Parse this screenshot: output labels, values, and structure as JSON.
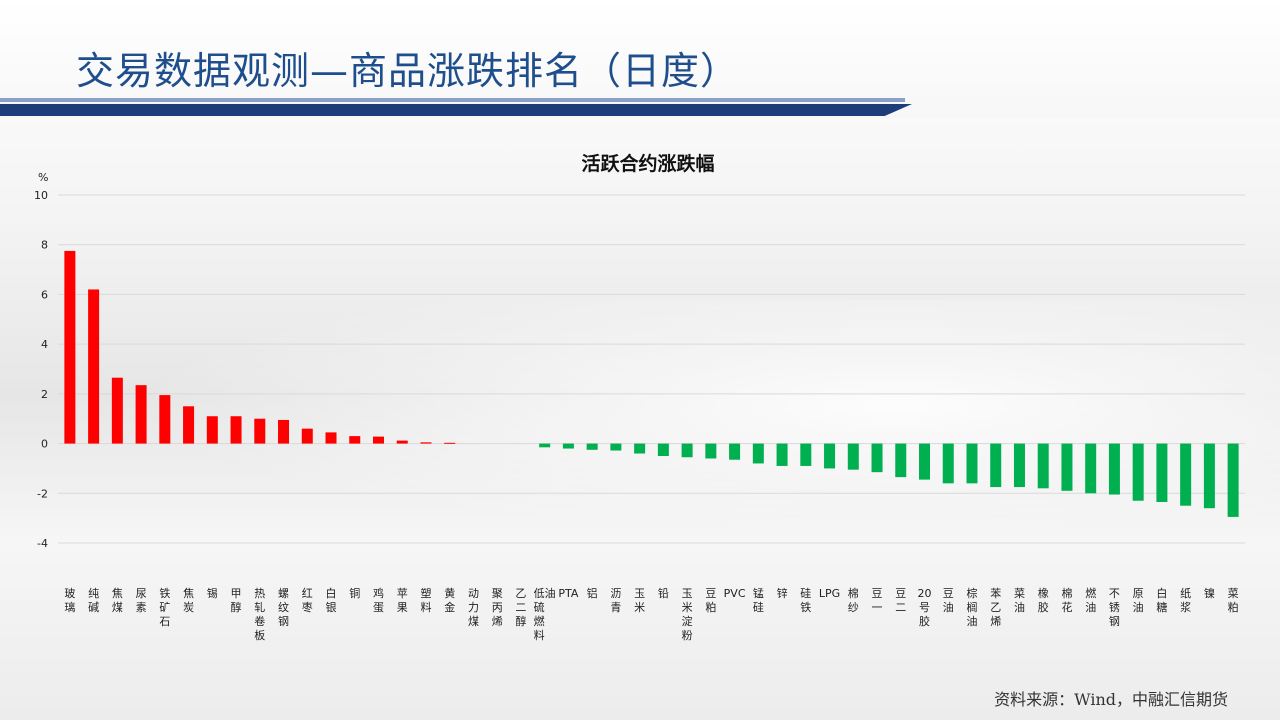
{
  "header": {
    "title": "交易数据观测—商品涨跌排名（日度）"
  },
  "footer": {
    "source": "资料来源：Wind，中融汇信期货"
  },
  "colors": {
    "up": "#ff0000",
    "down": "#00b050",
    "title": "#1f4e8c",
    "rule": "#1c3d7a",
    "grid": "#d9d9d9"
  },
  "chart_data": {
    "type": "bar",
    "title": "活跃合约涨跌幅",
    "ylabel": "%",
    "xlabel": "",
    "ylim": [
      -4,
      10
    ],
    "yticks": [
      10,
      8,
      6,
      4,
      2,
      0,
      -2,
      -4
    ],
    "grid": true,
    "categories": [
      "玻璃",
      "纯碱",
      "焦煤",
      "尿素",
      "铁矿石",
      "焦炭",
      "锡",
      "甲醇",
      "热轧卷板",
      "螺纹钢",
      "红枣",
      "白银",
      "铜",
      "鸡蛋",
      "苹果",
      "塑料",
      "黄金",
      "动力煤",
      "聚丙烯",
      "乙二醇",
      "低硫燃料油",
      "PTA",
      "铝",
      "沥青",
      "玉米",
      "铅",
      "玉米淀粉",
      "豆粕",
      "PVC",
      "锰硅",
      "锌",
      "硅铁",
      "LPG",
      "棉纱",
      "豆一",
      "豆二",
      "20号胶",
      "豆油",
      "棕榈油",
      "苯乙烯",
      "菜油",
      "橡胶",
      "棉花",
      "燃油",
      "不锈钢",
      "原油",
      "白糖",
      "纸浆",
      "镍",
      "菜粕"
    ],
    "values": [
      7.75,
      6.2,
      2.65,
      2.35,
      1.95,
      1.5,
      1.1,
      1.1,
      1.0,
      0.95,
      0.6,
      0.45,
      0.3,
      0.28,
      0.12,
      0.05,
      0.03,
      0.0,
      0.0,
      0.0,
      -0.15,
      -0.2,
      -0.25,
      -0.28,
      -0.4,
      -0.5,
      -0.55,
      -0.6,
      -0.65,
      -0.8,
      -0.9,
      -0.9,
      -1.0,
      -1.05,
      -1.15,
      -1.35,
      -1.45,
      -1.6,
      -1.6,
      -1.75,
      -1.75,
      -1.8,
      -1.9,
      -2.0,
      -2.05,
      -2.3,
      -2.35,
      -2.5,
      -2.6,
      -2.95
    ]
  }
}
